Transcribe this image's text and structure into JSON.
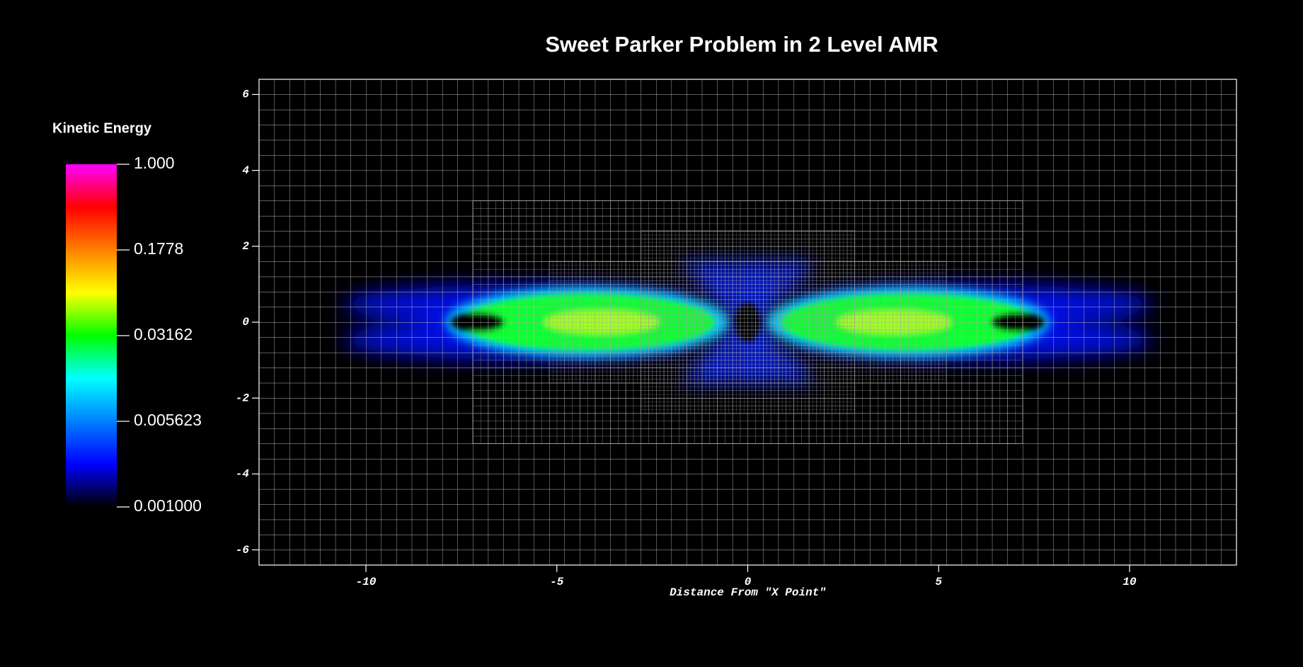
{
  "chart_data": {
    "type": "pseudocolor",
    "title": "Sweet Parker Problem in 2 Level AMR",
    "xlabel": "Distance From \"X Point\"",
    "xlim": [
      -12.8,
      12.8
    ],
    "ylim": [
      -6.4,
      6.4
    ],
    "xticks": [
      -10,
      -5,
      0,
      5,
      10
    ],
    "yticks": [
      -6,
      -4,
      -2,
      0,
      2,
      4,
      6
    ],
    "colorbar": {
      "title": "Kinetic Energy",
      "log_scale": true,
      "range": [
        0.001,
        1
      ],
      "colors": [
        "#000000",
        "#0000ff",
        "#0080ff",
        "#00ffff",
        "#00ff00",
        "#ffff00",
        "#ff8000",
        "#ff0000",
        "#ff00ff"
      ],
      "ticks": [
        {
          "value": 1,
          "label": "1.000"
        },
        {
          "value": 0.1778,
          "label": "0.1778"
        },
        {
          "value": 0.03162,
          "label": "0.03162"
        },
        {
          "value": 0.005623,
          "label": "0.005623"
        },
        {
          "value": 0.001,
          "label": "0.001000"
        }
      ]
    }
  }
}
